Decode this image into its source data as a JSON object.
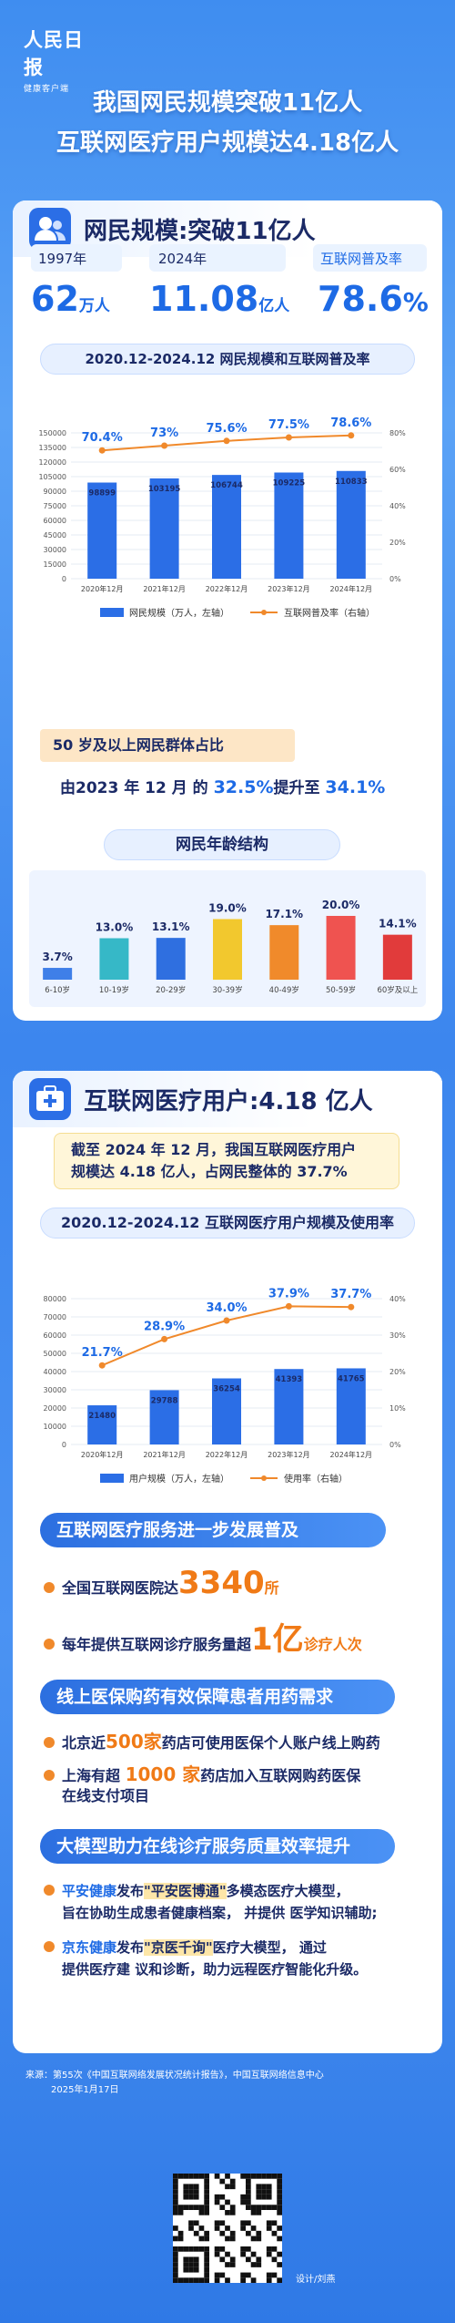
{
  "header": {
    "logo_line1": "人民日报",
    "logo_line2": "健康客户端",
    "title1": "我国网民规模突破11亿人",
    "title2": "互联网医疗用户规模达4.18亿人"
  },
  "sec1": {
    "title": "网民规模:突破11亿人",
    "stat1_year": "1997年",
    "stat1_value": "62",
    "stat1_unit": "万人",
    "stat2_year": "2024年",
    "stat2_value": "11.08",
    "stat2_unit": "亿人",
    "stat3_label": "互联网普及率",
    "stat3_value": "78.6",
    "stat3_unit": "%",
    "chart_title": "2020.12-2024.12 网民规模和互联网普及率",
    "age_header": "50 岁及以上网民群体占比",
    "age_text_a": "由2023 年 12 月 的 ",
    "age_text_b": "32.5%",
    "age_text_c": "提升至 ",
    "age_text_d": "34.1%",
    "age_chart_title": "网民年龄结构"
  },
  "sec2": {
    "title": "互联网医疗用户:4.18 亿人",
    "intro_a": "截至 2024 年 12 月，我国互联网医疗用户",
    "intro_b": "规模达 4.18 亿人，占网民整体的 37.7%",
    "chart_title": "2020.12-2024.12 互联网医疗用户规模及使用率",
    "banner1": "互联网医疗服务进一步发展普及",
    "b1_item1_a": "全国互联网医院达",
    "b1_item1_b": "3340",
    "b1_item1_c": "所",
    "b1_item2_a": "每年提供互联网诊疗服务量超",
    "b1_item2_b": "1亿",
    "b1_item2_c": "诊疗人次",
    "banner2": "线上医保购药有效保障患者用药需求",
    "b2_item1_a": "北京近",
    "b2_item1_b": "500家",
    "b2_item1_c": "药店可使用医保个人账户线上购药",
    "b2_item2_a": "上海有超 ",
    "b2_item2_b": "1000 家",
    "b2_item2_c": "药店加入互联网购药医保",
    "b2_item2_d": "在线支付项目",
    "banner3": "大模型助力在线诊疗服务质量效率提升",
    "b3_item1_a": "平安健康",
    "b3_item1_b": "发布",
    "b3_item1_c": "\"平安医博通\"",
    "b3_item1_d": "多模态医疗大模型，",
    "b3_item1_e": "旨在协助生成患者健康档案， 并提供 医学知识辅助;",
    "b3_item2_a": "京东健康",
    "b3_item2_b": "发布",
    "b3_item2_c": "\"京医千询\"",
    "b3_item2_d": "医疗大模型， 通过",
    "b3_item2_e": "提供医疗建 议和诊断，助力远程医疗智能化升级。"
  },
  "footer": {
    "source1": "来源：第55次《中国互联网络发展状况统计报告》，中国互联网络信息中心",
    "source2": "2025年1月17日",
    "design": "设计/刘燕"
  },
  "colors": {
    "blue": "#2b6ee6",
    "orange": "#f0892b",
    "ages": [
      "#3f7fe8",
      "#36b8c7",
      "#2f6fe0",
      "#f2c82e",
      "#f08a2b",
      "#ef5350",
      "#e13b3b"
    ]
  },
  "chart_data": [
    {
      "type": "bar",
      "title": "2020.12-2024.12 网民规模和互联网普及率",
      "categories": [
        "2020年12月",
        "2021年12月",
        "2022年12月",
        "2023年12月",
        "2024年12月"
      ],
      "series": [
        {
          "name": "网民规模（万人，左轴）",
          "type": "bar",
          "values": [
            98899,
            103195,
            106744,
            109225,
            110833
          ]
        },
        {
          "name": "互联网普及率（右轴）",
          "type": "line",
          "values": [
            70.4,
            73,
            75.6,
            77.5,
            78.6
          ],
          "labels": [
            "70.4%",
            "73%",
            "75.6%",
            "77.5%",
            "78.6%"
          ]
        }
      ],
      "y_ticks": [
        "0",
        "15000",
        "30000",
        "45000",
        "60000",
        "75000",
        "90000",
        "105000",
        "120000",
        "135000",
        "150000"
      ],
      "y2_ticks": [
        "0%",
        "20%",
        "40%",
        "60%",
        "80%"
      ],
      "ylim": [
        0,
        150000
      ],
      "y2lim": [
        0,
        80
      ]
    },
    {
      "type": "bar",
      "title": "网民年龄结构",
      "categories": [
        "6-10岁",
        "10-19岁",
        "20-29岁",
        "30-39岁",
        "40-49岁",
        "50-59岁",
        "60岁及以上"
      ],
      "values": [
        3.7,
        13.0,
        13.1,
        19.0,
        17.1,
        20.0,
        14.1
      ],
      "labels": [
        "3.7%",
        "13.0%",
        "13.1%",
        "19.0%",
        "17.1%",
        "20.0%",
        "14.1%"
      ]
    },
    {
      "type": "bar",
      "title": "2020.12-2024.12 互联网医疗用户规模及使用率",
      "categories": [
        "2020年12月",
        "2021年12月",
        "2022年12月",
        "2023年12月",
        "2024年12月"
      ],
      "series": [
        {
          "name": "用户规模（万人，左轴）",
          "type": "bar",
          "values": [
            21480,
            29788,
            36254,
            41393,
            41765
          ]
        },
        {
          "name": "使用率（右轴）",
          "type": "line",
          "values": [
            21.7,
            28.9,
            34.0,
            37.9,
            37.7
          ],
          "labels": [
            "21.7%",
            "28.9%",
            "34.0%",
            "37.9%",
            "37.7%"
          ]
        }
      ],
      "y_ticks": [
        "0",
        "10000",
        "20000",
        "30000",
        "40000",
        "50000",
        "60000",
        "70000",
        "80000"
      ],
      "y2_ticks": [
        "0%",
        "10%",
        "20%",
        "30%",
        "40%"
      ],
      "ylim": [
        0,
        80000
      ],
      "y2lim": [
        0,
        40
      ]
    }
  ]
}
